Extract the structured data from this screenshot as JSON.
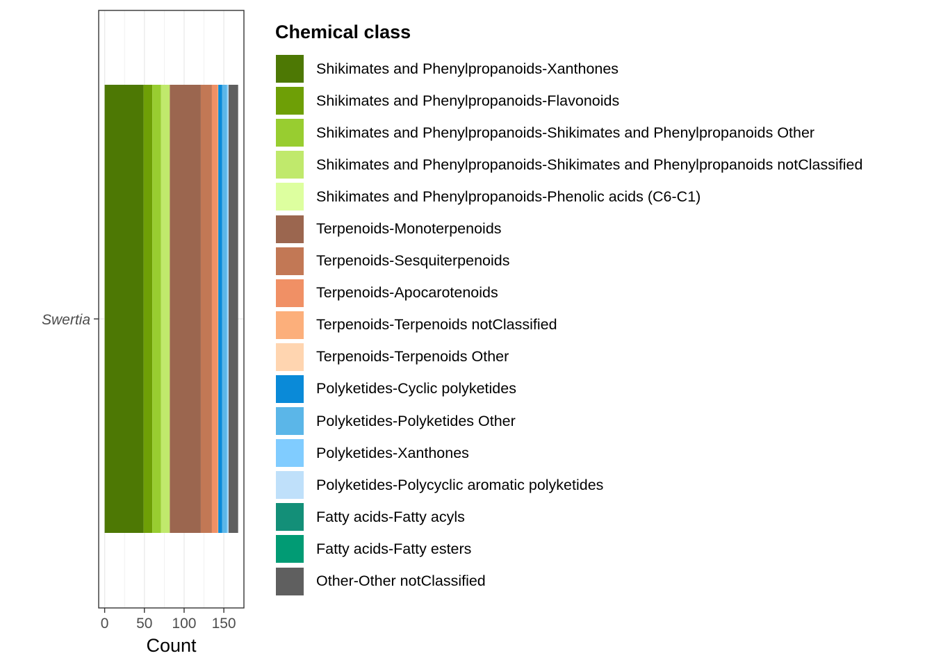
{
  "chart_data": {
    "type": "bar",
    "orientation": "horizontal",
    "stacked": true,
    "categories": [
      "Swertia"
    ],
    "xlabel": "Count",
    "ylabel": "",
    "xlim": [
      0,
      170
    ],
    "xticks": [
      0,
      50,
      100,
      150
    ],
    "xtick_labels": [
      "0",
      "50",
      "100",
      "150"
    ],
    "grid": true,
    "legend_title": "Chemical class",
    "legend_position": "right",
    "series": [
      {
        "name": "Shikimates and Phenylpropanoids-Xanthones",
        "color": "#4D7804",
        "values": [
          49
        ]
      },
      {
        "name": "Shikimates and Phenylpropanoids-Flavonoids",
        "color": "#6E9F06",
        "values": [
          11
        ]
      },
      {
        "name": "Shikimates and Phenylpropanoids-Shikimates and Phenylpropanoids Other",
        "color": "#98CD30",
        "values": [
          11
        ]
      },
      {
        "name": "Shikimates and Phenylpropanoids-Shikimates and Phenylpropanoids notClassified",
        "color": "#C0E96C",
        "values": [
          11
        ]
      },
      {
        "name": "Shikimates and Phenylpropanoids-Phenolic acids (C6-C1)",
        "color": "#DDFF9F",
        "values": [
          0
        ]
      },
      {
        "name": "Terpenoids-Monoterpenoids",
        "color": "#9B664F",
        "values": [
          39
        ]
      },
      {
        "name": "Terpenoids-Sesquiterpenoids",
        "color": "#C27855",
        "values": [
          14
        ]
      },
      {
        "name": "Terpenoids-Apocarotenoids",
        "color": "#F09065",
        "values": [
          7
        ]
      },
      {
        "name": "Terpenoids-Terpenoids notClassified",
        "color": "#FCAF7B",
        "values": [
          1
        ]
      },
      {
        "name": "Terpenoids-Terpenoids Other",
        "color": "#FFD5B0",
        "values": [
          0
        ]
      },
      {
        "name": "Polyketides-Cyclic polyketides",
        "color": "#0A8AD8",
        "values": [
          5
        ]
      },
      {
        "name": "Polyketides-Polyketides Other",
        "color": "#5BB6E8",
        "values": [
          6
        ]
      },
      {
        "name": "Polyketides-Xanthones",
        "color": "#80CCFF",
        "values": [
          1
        ]
      },
      {
        "name": "Polyketides-Polycyclic aromatic polyketides",
        "color": "#BFE0FA",
        "values": [
          1
        ]
      },
      {
        "name": "Fatty acids-Fatty acyls",
        "color": "#138F78",
        "values": [
          0
        ]
      },
      {
        "name": "Fatty acids-Fatty esters",
        "color": "#019B74",
        "values": [
          0
        ]
      },
      {
        "name": "Other-Other notClassified",
        "color": "#5F5F5F",
        "values": [
          12
        ]
      }
    ]
  }
}
